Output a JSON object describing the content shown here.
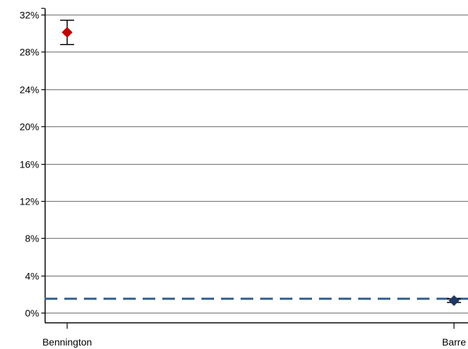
{
  "chart_data": {
    "type": "scatter",
    "title": "",
    "xlabel": "",
    "ylabel": "",
    "ylim": [
      0,
      32
    ],
    "yticks": [
      0,
      4,
      8,
      12,
      16,
      20,
      24,
      28,
      32
    ],
    "ytick_labels": [
      "0%",
      "4%",
      "8%",
      "12%",
      "16%",
      "20%",
      "24%",
      "28%",
      "32%"
    ],
    "grid": true,
    "categories": [
      "Bennington",
      "Barre"
    ],
    "points": [
      {
        "category": "Bennington",
        "value": 30.1,
        "error_low": 28.8,
        "error_high": 31.4,
        "color": "#c00000"
      },
      {
        "category": "Barre",
        "value": 1.3,
        "error_low": 1.1,
        "error_high": 1.5,
        "color": "#1f3864"
      }
    ],
    "reference_line": {
      "value": 1.5,
      "style": "dashed",
      "color": "#2e5c8e"
    }
  }
}
